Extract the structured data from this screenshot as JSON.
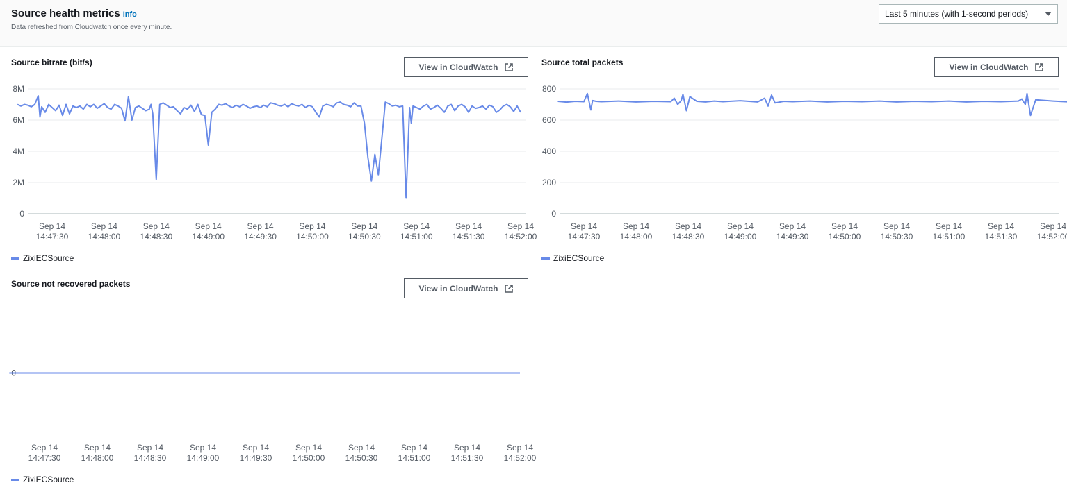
{
  "header": {
    "title": "Source health metrics",
    "info": "Info",
    "subtitle": "Data refreshed from Cloudwatch once every minute.",
    "range_select": "Last 5 minutes (with 1-second periods)"
  },
  "colors": {
    "series": "#688ae8",
    "grid": "#e9ebed",
    "axis": "#545b64"
  },
  "icons": {
    "external_link": "external-link-icon",
    "caret": "caret-down-icon"
  },
  "panels": [
    {
      "title": "Source bitrate (bit/s)",
      "button": "View in CloudWatch",
      "legend": "ZixiECSource"
    },
    {
      "title": "Source total packets",
      "button": "View in CloudWatch",
      "legend": "ZixiECSource"
    },
    {
      "title": "Source not recovered packets",
      "button": "View in CloudWatch",
      "legend": "ZixiECSource"
    }
  ],
  "chart_data": [
    {
      "type": "line",
      "title": "Source bitrate (bit/s)",
      "ylim": [
        0,
        8000000
      ],
      "yticks": [
        {
          "v": 0,
          "label": "0"
        },
        {
          "v": 2000000,
          "label": "2M"
        },
        {
          "v": 4000000,
          "label": "4M"
        },
        {
          "v": 6000000,
          "label": "6M"
        },
        {
          "v": 8000000,
          "label": "8M"
        }
      ],
      "xlim": [
        0,
        300
      ],
      "xticks": [
        {
          "v": 10,
          "line1": "Sep 14",
          "line2": "14:47:30"
        },
        {
          "v": 40,
          "line1": "Sep 14",
          "line2": "14:48:00"
        },
        {
          "v": 70,
          "line1": "Sep 14",
          "line2": "14:48:30"
        },
        {
          "v": 100,
          "line1": "Sep 14",
          "line2": "14:49:00"
        },
        {
          "v": 130,
          "line1": "Sep 14",
          "line2": "14:49:30"
        },
        {
          "v": 160,
          "line1": "Sep 14",
          "line2": "14:50:00"
        },
        {
          "v": 190,
          "line1": "Sep 14",
          "line2": "14:50:30"
        },
        {
          "v": 220,
          "line1": "Sep 14",
          "line2": "14:51:00"
        },
        {
          "v": 250,
          "line1": "Sep 14",
          "line2": "14:51:30"
        },
        {
          "v": 280,
          "line1": "Sep 14",
          "line2": "14:52:00"
        }
      ],
      "series": [
        {
          "name": "ZixiECSource",
          "x": [
            -10,
            -8,
            -6,
            -4,
            -2,
            0,
            2,
            3,
            4,
            6,
            8,
            10,
            12,
            14,
            16,
            18,
            20,
            22,
            24,
            26,
            28,
            30,
            32,
            34,
            36,
            38,
            40,
            42,
            44,
            46,
            48,
            50,
            52,
            54,
            56,
            58,
            60,
            62,
            64,
            66,
            67,
            68,
            70,
            72,
            74,
            76,
            78,
            80,
            82,
            84,
            86,
            88,
            90,
            92,
            94,
            96,
            98,
            100,
            102,
            104,
            106,
            108,
            110,
            112,
            114,
            116,
            118,
            120,
            122,
            124,
            126,
            128,
            130,
            132,
            134,
            136,
            138,
            140,
            142,
            144,
            146,
            148,
            150,
            152,
            154,
            156,
            158,
            160,
            162,
            164,
            166,
            168,
            170,
            172,
            174,
            176,
            178,
            180,
            182,
            184,
            186,
            188,
            190,
            192,
            194,
            196,
            198,
            200,
            202,
            204,
            206,
            208,
            210,
            212,
            214,
            216,
            217,
            218,
            220,
            222,
            224,
            226,
            228,
            230,
            232,
            234,
            236,
            238,
            240,
            242,
            244,
            246,
            248,
            250,
            252,
            254,
            256,
            258,
            260,
            262,
            264,
            266,
            268,
            270,
            272,
            274,
            276,
            278,
            280
          ],
          "values": [
            7000000,
            6900000,
            7000000,
            6950000,
            6850000,
            7000000,
            7550000,
            6200000,
            6850000,
            6500000,
            7000000,
            6800000,
            6600000,
            6950000,
            6300000,
            7000000,
            6400000,
            6900000,
            6800000,
            6900000,
            6700000,
            7000000,
            6850000,
            7000000,
            6750000,
            6900000,
            7050000,
            6800000,
            6700000,
            7000000,
            6900000,
            6750000,
            5950000,
            7500000,
            6000000,
            6800000,
            6900000,
            6750000,
            6600000,
            6700000,
            7000000,
            6400000,
            2200000,
            7000000,
            7100000,
            6950000,
            6800000,
            6850000,
            6600000,
            6400000,
            6800000,
            6700000,
            6950000,
            6550000,
            7000000,
            6350000,
            6300000,
            4400000,
            6500000,
            6700000,
            7000000,
            6950000,
            7050000,
            6900000,
            6800000,
            6950000,
            6850000,
            7000000,
            6900000,
            6750000,
            6850000,
            6900000,
            6800000,
            6950000,
            6850000,
            7100000,
            7050000,
            6950000,
            6900000,
            7000000,
            6850000,
            7050000,
            6950000,
            6900000,
            7000000,
            6800000,
            6950000,
            6850000,
            6500000,
            6200000,
            6900000,
            7000000,
            6950000,
            6850000,
            7100000,
            7150000,
            7000000,
            6950000,
            6850000,
            7100000,
            6900000,
            6900000,
            5800000,
            3600000,
            2100000,
            3800000,
            2500000,
            4800000,
            7150000,
            7050000,
            6900000,
            6950000,
            6850000,
            6900000,
            1000000,
            6800000,
            5800000,
            6900000,
            6800000,
            6700000,
            6900000,
            7000000,
            6700000,
            6800000,
            6950000,
            6750000,
            6500000,
            6900000,
            7000000,
            6600000,
            6900000,
            7000000,
            6850000,
            6500000,
            6900000,
            6750000,
            6800000,
            6900000,
            6700000,
            6950000,
            6850000,
            6500000,
            6650000,
            6900000,
            7000000,
            6850000,
            6550000,
            6900000,
            6500000
          ]
        }
      ]
    },
    {
      "type": "line",
      "title": "Source total packets",
      "ylim": [
        0,
        800
      ],
      "yticks": [
        {
          "v": 0,
          "label": "0"
        },
        {
          "v": 200,
          "label": "200"
        },
        {
          "v": 400,
          "label": "400"
        },
        {
          "v": 600,
          "label": "600"
        },
        {
          "v": 800,
          "label": "800"
        }
      ],
      "xlim": [
        0,
        300
      ],
      "xticks": [
        {
          "v": 10,
          "line1": "Sep 14",
          "line2": "14:47:30"
        },
        {
          "v": 40,
          "line1": "Sep 14",
          "line2": "14:48:00"
        },
        {
          "v": 70,
          "line1": "Sep 14",
          "line2": "14:48:30"
        },
        {
          "v": 100,
          "line1": "Sep 14",
          "line2": "14:49:00"
        },
        {
          "v": 130,
          "line1": "Sep 14",
          "line2": "14:49:30"
        },
        {
          "v": 160,
          "line1": "Sep 14",
          "line2": "14:50:00"
        },
        {
          "v": 190,
          "line1": "Sep 14",
          "line2": "14:50:30"
        },
        {
          "v": 220,
          "line1": "Sep 14",
          "line2": "14:51:00"
        },
        {
          "v": 250,
          "line1": "Sep 14",
          "line2": "14:51:30"
        },
        {
          "v": 280,
          "line1": "Sep 14",
          "line2": "14:52:00"
        }
      ],
      "series": [
        {
          "name": "ZixiECSource",
          "x": [
            -5,
            0,
            5,
            10,
            12,
            14,
            15,
            17,
            20,
            30,
            40,
            50,
            60,
            62,
            64,
            66,
            67,
            69,
            71,
            75,
            80,
            85,
            90,
            100,
            110,
            114,
            116,
            118,
            120,
            125,
            130,
            140,
            150,
            160,
            170,
            180,
            190,
            200,
            210,
            220,
            230,
            240,
            250,
            260,
            262,
            264,
            265,
            267,
            270,
            280,
            290,
            300
          ],
          "values": [
            720,
            715,
            720,
            718,
            770,
            665,
            725,
            720,
            718,
            722,
            716,
            720,
            718,
            740,
            700,
            725,
            765,
            660,
            750,
            720,
            716,
            722,
            718,
            724,
            716,
            740,
            690,
            760,
            710,
            720,
            718,
            722,
            716,
            720,
            718,
            722,
            716,
            720,
            718,
            722,
            716,
            720,
            718,
            722,
            735,
            700,
            770,
            630,
            730,
            722,
            716,
            720
          ]
        }
      ]
    },
    {
      "type": "line",
      "title": "Source not recovered packets",
      "ylim": [
        -1,
        1
      ],
      "yticks": [
        {
          "v": 0,
          "label": "0"
        }
      ],
      "xlim": [
        0,
        300
      ],
      "xticks": [
        {
          "v": 10,
          "line1": "Sep 14",
          "line2": "14:47:30"
        },
        {
          "v": 40,
          "line1": "Sep 14",
          "line2": "14:48:00"
        },
        {
          "v": 70,
          "line1": "Sep 14",
          "line2": "14:48:30"
        },
        {
          "v": 100,
          "line1": "Sep 14",
          "line2": "14:49:00"
        },
        {
          "v": 130,
          "line1": "Sep 14",
          "line2": "14:49:30"
        },
        {
          "v": 160,
          "line1": "Sep 14",
          "line2": "14:50:00"
        },
        {
          "v": 190,
          "line1": "Sep 14",
          "line2": "14:50:30"
        },
        {
          "v": 220,
          "line1": "Sep 14",
          "line2": "14:51:00"
        },
        {
          "v": 250,
          "line1": "Sep 14",
          "line2": "14:51:30"
        },
        {
          "v": 280,
          "line1": "Sep 14",
          "line2": "14:52:00"
        }
      ],
      "series": [
        {
          "name": "ZixiECSource",
          "x": [
            -10,
            280
          ],
          "values": [
            0,
            0
          ]
        }
      ]
    }
  ]
}
